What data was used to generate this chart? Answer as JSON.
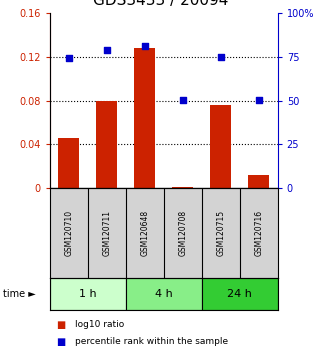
{
  "title": "GDS3433 / 20094",
  "samples": [
    "GSM120710",
    "GSM120711",
    "GSM120648",
    "GSM120708",
    "GSM120715",
    "GSM120716"
  ],
  "log10_ratio": [
    0.046,
    0.08,
    0.128,
    0.001,
    0.076,
    0.012
  ],
  "percentile_rank": [
    0.119,
    0.126,
    0.13,
    0.081,
    0.12,
    0.081
  ],
  "groups": [
    {
      "label": "1 h",
      "indices": [
        0,
        1
      ],
      "color": "#ccffcc"
    },
    {
      "label": "4 h",
      "indices": [
        2,
        3
      ],
      "color": "#88ee88"
    },
    {
      "label": "24 h",
      "indices": [
        4,
        5
      ],
      "color": "#33cc33"
    }
  ],
  "bar_color": "#cc2200",
  "dot_color": "#0000cc",
  "ylim_left": [
    0,
    0.16
  ],
  "ylim_right": [
    0,
    100
  ],
  "yticks_left": [
    0,
    0.04,
    0.08,
    0.12,
    0.16
  ],
  "yticks_left_labels": [
    "0",
    "0.04",
    "0.08",
    "0.12",
    "0.16"
  ],
  "yticks_right": [
    0,
    25,
    50,
    75,
    100
  ],
  "yticks_right_labels": [
    "0",
    "25",
    "50",
    "75",
    "100%"
  ],
  "dotted_lines": [
    0.04,
    0.08,
    0.12
  ],
  "title_fontsize": 11,
  "tick_fontsize": 7,
  "sample_fontsize": 5.5,
  "group_label_fontsize": 8,
  "legend_fontsize": 6.5,
  "background_color": "#ffffff",
  "left_axis_color": "#cc2200",
  "right_axis_color": "#0000cc",
  "label_bg_color": "#d3d3d3",
  "legend_items": [
    {
      "label": "log10 ratio",
      "color": "#cc2200"
    },
    {
      "label": "percentile rank within the sample",
      "color": "#0000cc"
    }
  ]
}
